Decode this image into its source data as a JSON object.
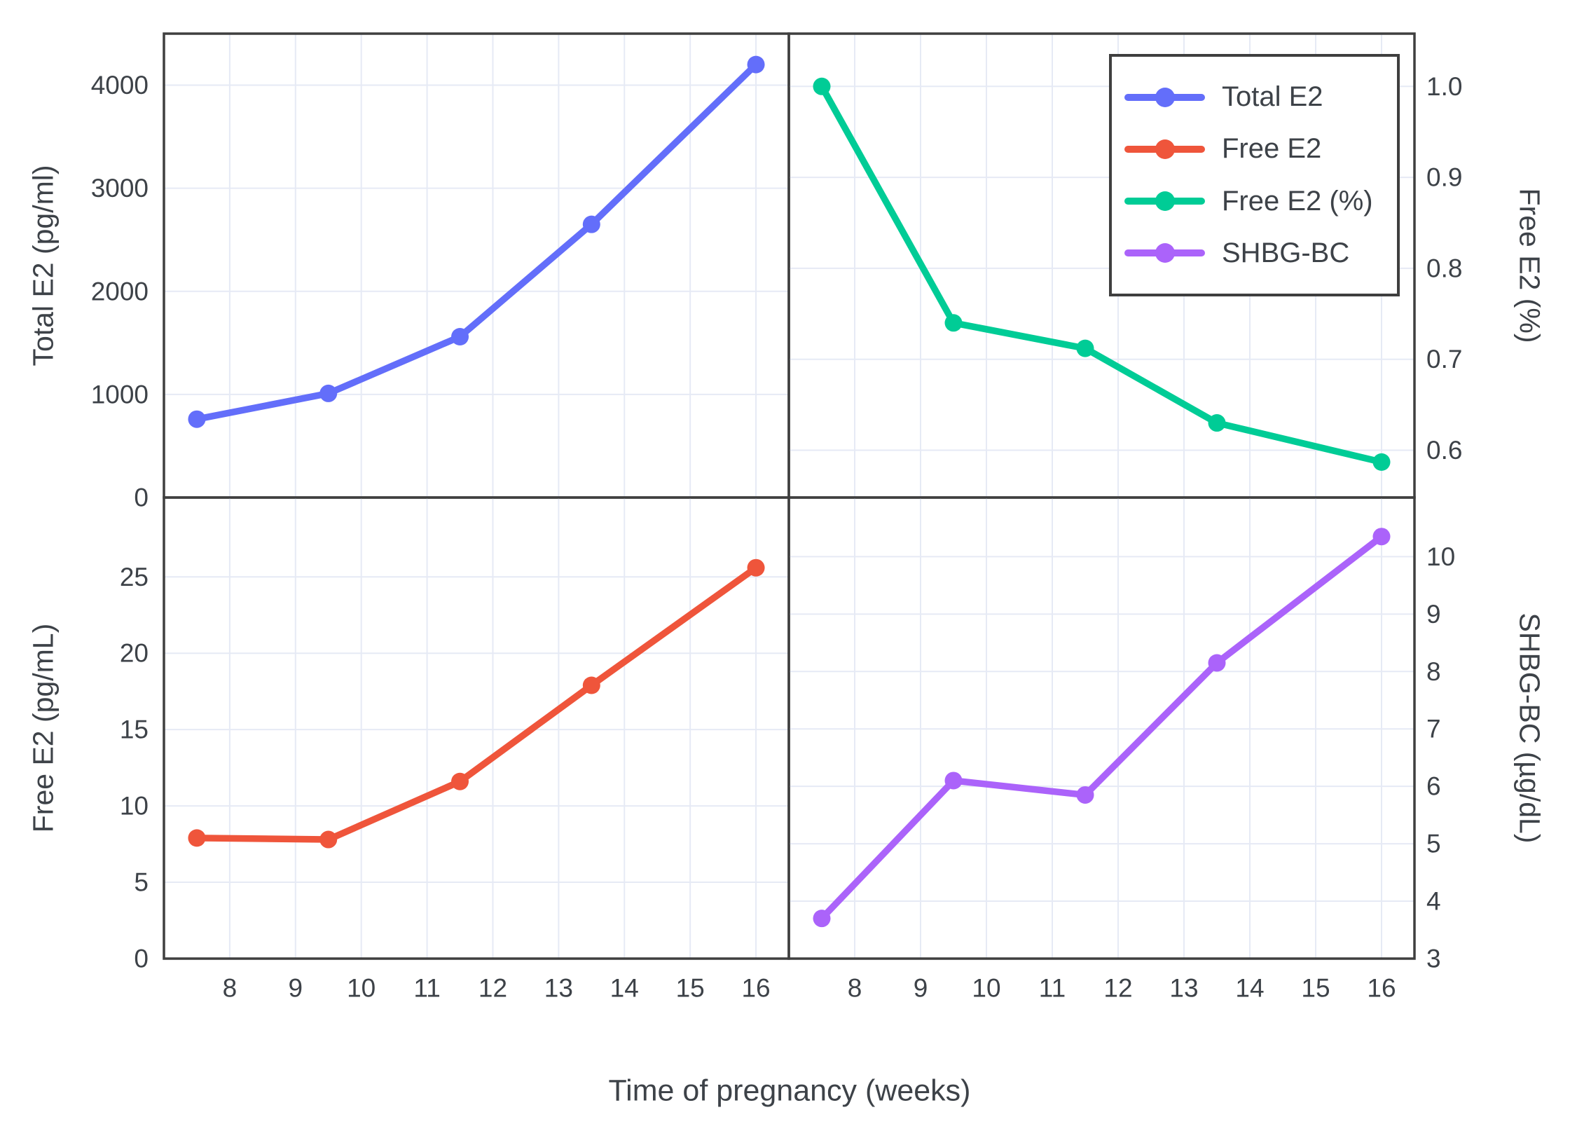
{
  "colors": {
    "total_e2": "#636EFA",
    "free_e2": "#EF553B",
    "free_e2_pct": "#00CC96",
    "shbg_bc": "#AB63FA",
    "grid": "#E6EAF5",
    "border": "#3F3F3F",
    "text": "#3D4248",
    "background": "#FFFFFF"
  },
  "x_axis": {
    "label": "Time of pregnancy (weeks)",
    "ticks": [
      8,
      9,
      10,
      11,
      12,
      13,
      14,
      15,
      16
    ],
    "tick_labels": [
      "8",
      "9",
      "10",
      "11",
      "12",
      "13",
      "14",
      "15",
      "16"
    ],
    "lim": [
      7.0,
      16.5
    ]
  },
  "legend": {
    "position": "top-right",
    "entries": [
      {
        "label": "Total E2",
        "color_key": "total_e2"
      },
      {
        "label": "Free E2",
        "color_key": "free_e2"
      },
      {
        "label": "Free E2 (%)",
        "color_key": "free_e2_pct"
      },
      {
        "label": "SHBG-BC",
        "color_key": "shbg_bc"
      }
    ]
  },
  "chart_data": [
    {
      "type": "line",
      "panel": "top-left",
      "ylabel": "Total E2 (pg/ml)",
      "ylabel_side": "left",
      "ylim": [
        0,
        4500
      ],
      "yticks": [
        0,
        1000,
        2000,
        3000,
        4000
      ],
      "ytick_labels": [
        "0",
        "1000",
        "2000",
        "3000",
        "4000"
      ],
      "grid": true,
      "series": [
        {
          "name": "Total E2",
          "color_key": "total_e2",
          "x": [
            7.5,
            9.5,
            11.5,
            13.5,
            16
          ],
          "y": [
            760,
            1010,
            1560,
            2650,
            4200
          ]
        }
      ]
    },
    {
      "type": "line",
      "panel": "top-right",
      "ylabel": "Free E2 (%)",
      "ylabel_side": "right",
      "ylim": [
        0.548,
        1.058
      ],
      "yticks": [
        0.6,
        0.7,
        0.8,
        0.9,
        1.0
      ],
      "ytick_labels": [
        "0.6",
        "0.7",
        "0.8",
        "0.9",
        "1.0"
      ],
      "grid": true,
      "series": [
        {
          "name": "Free E2 (%)",
          "color_key": "free_e2_pct",
          "x": [
            7.5,
            9.5,
            11.5,
            13.5,
            16
          ],
          "y": [
            1.0,
            0.74,
            0.712,
            0.63,
            0.587
          ]
        }
      ]
    },
    {
      "type": "line",
      "panel": "bottom-left",
      "ylabel": "Free E2 (pg/mL)",
      "ylabel_side": "left",
      "ylim": [
        0,
        30.2
      ],
      "yticks": [
        0,
        5,
        10,
        15,
        20,
        25
      ],
      "ytick_labels": [
        "0",
        "5",
        "10",
        "15",
        "20",
        "25"
      ],
      "grid": true,
      "series": [
        {
          "name": "Free E2",
          "color_key": "free_e2",
          "x": [
            7.5,
            9.5,
            11.5,
            13.5,
            16
          ],
          "y": [
            7.9,
            7.8,
            11.6,
            17.9,
            25.6
          ]
        }
      ]
    },
    {
      "type": "line",
      "panel": "bottom-right",
      "ylabel": "SHBG-BC (µg/dL)",
      "ylabel_side": "right",
      "ylim": [
        3,
        11.03
      ],
      "yticks": [
        3,
        4,
        5,
        6,
        7,
        8,
        9,
        10
      ],
      "ytick_labels": [
        "3",
        "4",
        "5",
        "6",
        "7",
        "8",
        "9",
        "10"
      ],
      "grid": true,
      "series": [
        {
          "name": "SHBG-BC",
          "color_key": "shbg_bc",
          "x": [
            7.5,
            9.5,
            11.5,
            13.5,
            16
          ],
          "y": [
            3.7,
            6.1,
            5.85,
            8.15,
            10.35
          ]
        }
      ]
    }
  ]
}
